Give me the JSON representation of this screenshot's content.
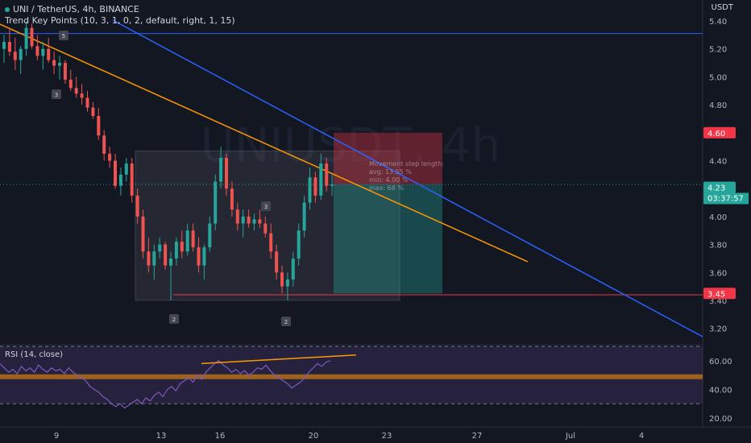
{
  "header": {
    "symbol_line": "UNI / TetherUS, 4h, BINANCE",
    "indicator_line": "Trend Key Points (10, 3, 1, 0, 2, default, right, 1, 15)",
    "currency": "USDT"
  },
  "watermark": "UNIUSDT, 4h",
  "price_axis": {
    "ticks": [
      "5.40",
      "5.20",
      "5.00",
      "4.80",
      "4.60",
      "4.40",
      "4.20",
      "4.00",
      "3.80",
      "3.60",
      "3.40",
      "3.20"
    ],
    "ticks_values": [
      5.4,
      5.2,
      5.0,
      4.8,
      4.6,
      4.4,
      4.2,
      4.0,
      3.8,
      3.6,
      3.4,
      3.2
    ],
    "ylim": [
      3.1,
      5.55
    ]
  },
  "labels": {
    "target": {
      "text": "4.60",
      "value": 4.6,
      "color": "#f23645"
    },
    "entry": {
      "text": "4.23",
      "value": 4.23
    },
    "current": {
      "text": "4.23",
      "value": 4.23,
      "countdown": "03:37:57",
      "color": "#26a69a"
    },
    "stop": {
      "text": "3.45",
      "value": 3.45,
      "color": "#f23645"
    }
  },
  "time_axis": {
    "ticks": [
      "9",
      "13",
      "16",
      "20",
      "23",
      "27",
      "Jul",
      "4"
    ]
  },
  "trend_points": [
    "5",
    "3",
    "2",
    "3",
    "2"
  ],
  "info_box": {
    "line1": "Movement step length:",
    "line2": "avg: 13.55 %",
    "line3": "min: 4.00 %",
    "line4": "max: 68 %"
  },
  "rsi": {
    "title": "RSI (14, close)",
    "ticks": [
      "60.00",
      "40.00",
      "20.00"
    ],
    "ticks_values": [
      60,
      40,
      20
    ],
    "ylim": [
      15,
      70
    ],
    "upper_band": 70,
    "lower_band": 30,
    "values": [
      58,
      55,
      52,
      54,
      51,
      56,
      53,
      55,
      52,
      57,
      54,
      52,
      55,
      53,
      54,
      51,
      55,
      52,
      50,
      48,
      46,
      42,
      40,
      38,
      35,
      33,
      30,
      28,
      30,
      27,
      29,
      31,
      33,
      30,
      34,
      32,
      36,
      38,
      35,
      40,
      42,
      39,
      44,
      46,
      48,
      45,
      50,
      47,
      52,
      55,
      58,
      60,
      57,
      55,
      52,
      54,
      51,
      53,
      50,
      52,
      55,
      54,
      57,
      53,
      50,
      48,
      46,
      44,
      41,
      43,
      45,
      48,
      52,
      55,
      58,
      56,
      59,
      60
    ]
  },
  "chart_data": {
    "type": "candlestick",
    "title": "UNI / TetherUS, 4h, BINANCE",
    "ylabel": "USDT",
    "ylim": [
      3.1,
      5.55
    ],
    "candles": [
      [
        5.2,
        5.3,
        5.1,
        5.25
      ],
      [
        5.25,
        5.35,
        5.15,
        5.18
      ],
      [
        5.18,
        5.28,
        5.05,
        5.12
      ],
      [
        5.12,
        5.22,
        5.02,
        5.2
      ],
      [
        5.2,
        5.4,
        5.15,
        5.35
      ],
      [
        5.35,
        5.38,
        5.2,
        5.22
      ],
      [
        5.22,
        5.3,
        5.12,
        5.15
      ],
      [
        5.15,
        5.25,
        5.05,
        5.2
      ],
      [
        5.2,
        5.28,
        5.1,
        5.12
      ],
      [
        5.12,
        5.18,
        5.02,
        5.08
      ],
      [
        5.08,
        5.15,
        4.98,
        5.1
      ],
      [
        5.1,
        5.12,
        4.95,
        4.98
      ],
      [
        4.98,
        5.05,
        4.9,
        4.92
      ],
      [
        4.92,
        5.0,
        4.85,
        4.88
      ],
      [
        4.88,
        4.95,
        4.8,
        4.85
      ],
      [
        4.85,
        4.9,
        4.75,
        4.78
      ],
      [
        4.78,
        4.82,
        4.7,
        4.72
      ],
      [
        4.72,
        4.78,
        4.55,
        4.58
      ],
      [
        4.58,
        4.62,
        4.4,
        4.45
      ],
      [
        4.45,
        4.5,
        4.35,
        4.4
      ],
      [
        4.4,
        4.45,
        4.2,
        4.22
      ],
      [
        4.22,
        4.35,
        4.15,
        4.3
      ],
      [
        4.3,
        4.42,
        4.25,
        4.38
      ],
      [
        4.38,
        4.42,
        4.1,
        4.15
      ],
      [
        4.15,
        4.2,
        3.95,
        4.0
      ],
      [
        4.0,
        4.05,
        3.7,
        3.75
      ],
      [
        3.75,
        3.85,
        3.6,
        3.65
      ],
      [
        3.65,
        3.8,
        3.55,
        3.75
      ],
      [
        3.75,
        3.85,
        3.7,
        3.8
      ],
      [
        3.8,
        3.82,
        3.62,
        3.65
      ],
      [
        3.65,
        3.75,
        3.4,
        3.7
      ],
      [
        3.7,
        3.85,
        3.65,
        3.82
      ],
      [
        3.82,
        3.9,
        3.7,
        3.75
      ],
      [
        3.75,
        3.95,
        3.72,
        3.9
      ],
      [
        3.9,
        3.95,
        3.75,
        3.78
      ],
      [
        3.78,
        3.85,
        3.6,
        3.65
      ],
      [
        3.65,
        3.8,
        3.55,
        3.78
      ],
      [
        3.78,
        4.0,
        3.75,
        3.95
      ],
      [
        3.95,
        4.3,
        3.9,
        4.25
      ],
      [
        4.25,
        4.5,
        4.2,
        4.42
      ],
      [
        4.42,
        4.45,
        4.15,
        4.2
      ],
      [
        4.2,
        4.25,
        4.0,
        4.05
      ],
      [
        4.05,
        4.1,
        3.9,
        3.95
      ],
      [
        3.95,
        4.05,
        3.85,
        4.0
      ],
      [
        4.0,
        4.05,
        3.92,
        3.95
      ],
      [
        3.95,
        4.02,
        3.9,
        3.98
      ],
      [
        3.98,
        4.05,
        3.92,
        3.95
      ],
      [
        3.95,
        4.0,
        3.85,
        3.88
      ],
      [
        3.88,
        3.95,
        3.7,
        3.75
      ],
      [
        3.75,
        3.8,
        3.55,
        3.6
      ],
      [
        3.6,
        3.65,
        3.45,
        3.5
      ],
      [
        3.5,
        3.6,
        3.4,
        3.55
      ],
      [
        3.55,
        3.75,
        3.5,
        3.7
      ],
      [
        3.7,
        3.95,
        3.65,
        3.9
      ],
      [
        3.9,
        4.15,
        3.85,
        4.1
      ],
      [
        4.1,
        4.35,
        4.05,
        4.28
      ],
      [
        4.28,
        4.32,
        4.1,
        4.15
      ],
      [
        4.15,
        4.45,
        4.12,
        4.38
      ],
      [
        4.38,
        4.42,
        4.18,
        4.22
      ],
      [
        4.22,
        4.3,
        4.15,
        4.23
      ]
    ]
  }
}
